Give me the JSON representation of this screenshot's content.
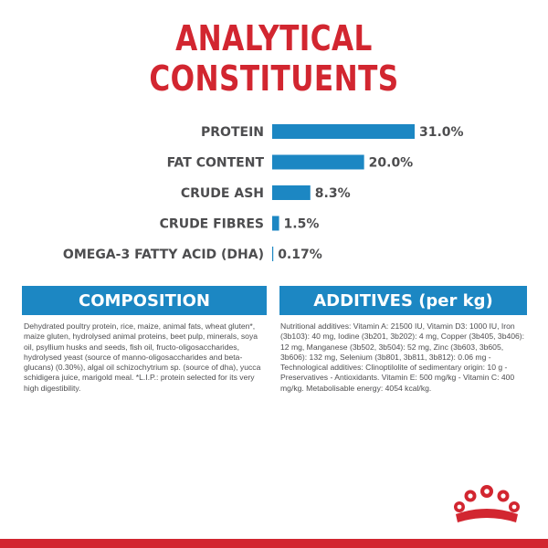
{
  "title": {
    "line1": "ANALYTICAL",
    "line2": "CONSTITUENTS"
  },
  "chart_data": {
    "type": "bar",
    "orientation": "horizontal",
    "categories": [
      "PROTEIN",
      "FAT CONTENT",
      "CRUDE ASH",
      "CRUDE FIBRES",
      "OMEGA-3 FATTY ACID (DHA)"
    ],
    "values": [
      31.0,
      20.0,
      8.3,
      1.5,
      0.17
    ],
    "value_labels": [
      "31.0%",
      "20.0%",
      "8.3%",
      "1.5%",
      "0.17%"
    ],
    "unit": "%",
    "xlim": [
      0,
      31
    ],
    "bar_color": "#1c87c3",
    "grid": false,
    "legend": false
  },
  "composition": {
    "heading": "COMPOSITION",
    "text": "Dehydrated poultry protein, rice, maize, animal fats, wheat gluten*, maize gluten, hydrolysed animal proteins, beet pulp, minerals, soya oil, psyllium husks and seeds, fish oil, fructo-oligosaccharides, hydrolysed yeast (source of manno-oligosaccharides and beta-glucans) (0.30%), algal oil schizochytrium sp. (source of dha), yucca schidigera juice, marigold meal. *L.I.P.: protein selected for its very high digestibility."
  },
  "additives": {
    "heading": "ADDITIVES (per kg)",
    "text": "Nutritional additives: Vitamin A: 21500 IU, Vitamin D3: 1000 IU, Iron (3b103): 40 mg, Iodine (3b201, 3b202): 4 mg, Copper (3b405, 3b406): 12 mg, Manganese (3b502, 3b504): 52 mg, Zinc (3b603, 3b605, 3b606): 132 mg, Selenium (3b801, 3b811, 3b812): 0.06 mg - Technological additives: Clinoptilolite of sedimentary origin: 10 g - Preservatives - Antioxidants. Vitamin E: 500 mg/kg - Vitamin C: 400 mg/kg. Metabolisable energy: 4054 kcal/kg."
  },
  "colors": {
    "accent_red": "#d22630",
    "accent_blue": "#1c87c3",
    "text_gray": "#4d4d4f"
  },
  "icons": {
    "brand": "crown-logo-icon"
  }
}
